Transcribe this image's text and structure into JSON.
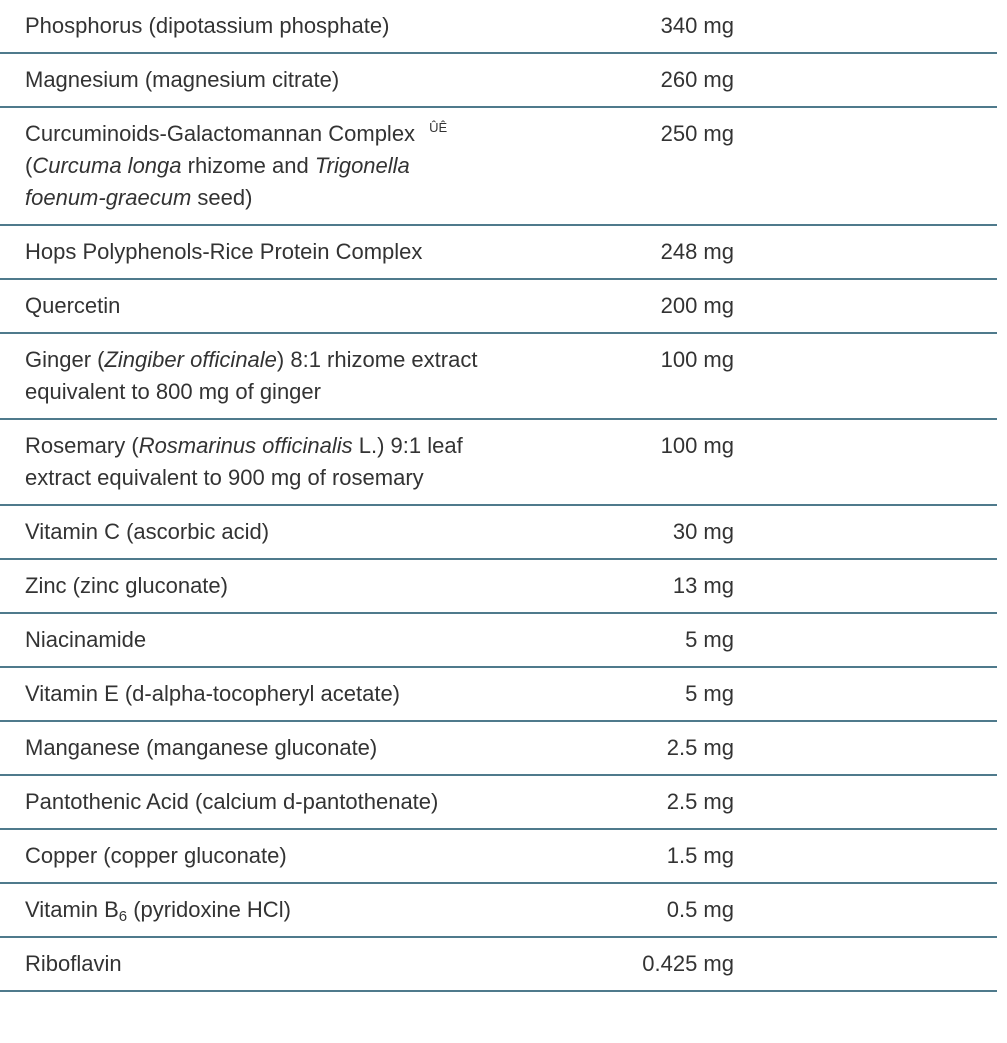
{
  "table": {
    "rows": [
      {
        "name": [
          "Phosphorus (dipotassium phosphate)"
        ],
        "amount": "340 mg"
      },
      {
        "name": [
          "Magnesium (magnesium citrate)"
        ],
        "amount": "260 mg"
      },
      {
        "name": [
          "Curcuminoids-Galactomannan Complex ",
          {
            "text": "ÛÊ",
            "style": "sup"
          },
          " (",
          {
            "text": "Curcuma longa",
            "style": "italic"
          },
          " rhizome and ",
          {
            "text": "Trigonella foenum-graecum",
            "style": "italic"
          },
          " seed)"
        ],
        "amount": "250 mg"
      },
      {
        "name": [
          "Hops Polyphenols-Rice Protein Complex"
        ],
        "amount": "248 mg"
      },
      {
        "name": [
          "Quercetin"
        ],
        "amount": "200 mg"
      },
      {
        "name": [
          "Ginger (",
          {
            "text": "Zingiber officinale",
            "style": "italic"
          },
          ") 8:1 rhizome extract equivalent to 800 mg of ginger"
        ],
        "amount": "100 mg"
      },
      {
        "name": [
          "Rosemary (",
          {
            "text": "Rosmarinus officinalis",
            "style": "italic"
          },
          " L.) 9:1 leaf extract equivalent to 900 mg of rosemary"
        ],
        "amount": "100 mg"
      },
      {
        "name": [
          "Vitamin C (ascorbic acid)"
        ],
        "amount": "30 mg"
      },
      {
        "name": [
          "Zinc (zinc gluconate)"
        ],
        "amount": "13 mg"
      },
      {
        "name": [
          "Niacinamide"
        ],
        "amount": "5 mg"
      },
      {
        "name": [
          "Vitamin E (d-alpha-tocopheryl acetate)"
        ],
        "amount": "5 mg"
      },
      {
        "name": [
          "Manganese (manganese gluconate)"
        ],
        "amount": "2.5 mg"
      },
      {
        "name": [
          "Pantothenic Acid (calcium d-pantothenate)"
        ],
        "amount": "2.5 mg"
      },
      {
        "name": [
          "Copper (copper gluconate)"
        ],
        "amount": "1.5 mg"
      },
      {
        "name": [
          "Vitamin B",
          {
            "text": "6",
            "style": "sub"
          },
          " (pyridoxine HCl)"
        ],
        "amount": "0.5 mg"
      },
      {
        "name": [
          "Riboflavin"
        ],
        "amount": "0.425 mg"
      }
    ]
  }
}
